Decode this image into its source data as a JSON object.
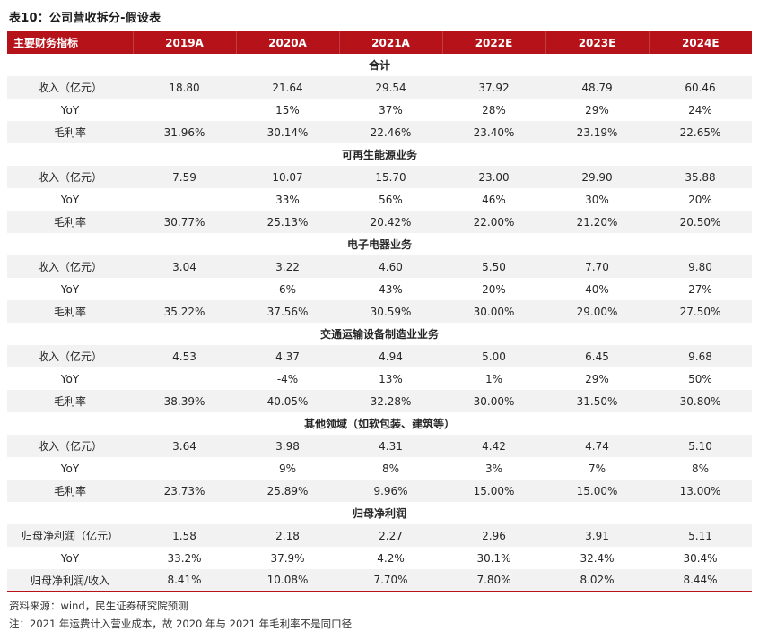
{
  "title": "表10：公司营收拆分-假设表",
  "colors": {
    "header_bg": "#b5121a",
    "accent_red": "#b5121a",
    "row_alt_bg": "#f2f2f2"
  },
  "table": {
    "header": [
      "主要财务指标",
      "2019A",
      "2020A",
      "2021A",
      "2022E",
      "2023E",
      "2024E"
    ],
    "sections": [
      {
        "name": "合计",
        "rows": [
          {
            "label": "收入（亿元）",
            "values": [
              "18.80",
              "21.64",
              "29.54",
              "37.92",
              "48.79",
              "60.46"
            ]
          },
          {
            "label": "YoY",
            "values": [
              "",
              "15%",
              "37%",
              "28%",
              "29%",
              "24%"
            ]
          },
          {
            "label": "毛利率",
            "values": [
              "31.96%",
              "30.14%",
              "22.46%",
              "23.40%",
              "23.19%",
              "22.65%"
            ]
          }
        ]
      },
      {
        "name": "可再生能源业务",
        "rows": [
          {
            "label": "收入（亿元）",
            "values": [
              "7.59",
              "10.07",
              "15.70",
              "23.00",
              "29.90",
              "35.88"
            ]
          },
          {
            "label": "YoY",
            "values": [
              "",
              "33%",
              "56%",
              "46%",
              "30%",
              "20%"
            ]
          },
          {
            "label": "毛利率",
            "values": [
              "30.77%",
              "25.13%",
              "20.42%",
              "22.00%",
              "21.20%",
              "20.50%"
            ]
          }
        ]
      },
      {
        "name": "电子电器业务",
        "rows": [
          {
            "label": "收入（亿元）",
            "values": [
              "3.04",
              "3.22",
              "4.60",
              "5.50",
              "7.70",
              "9.80"
            ]
          },
          {
            "label": "YoY",
            "values": [
              "",
              "6%",
              "43%",
              "20%",
              "40%",
              "27%"
            ]
          },
          {
            "label": "毛利率",
            "values": [
              "35.22%",
              "37.56%",
              "30.59%",
              "30.00%",
              "29.00%",
              "27.50%"
            ]
          }
        ]
      },
      {
        "name": "交通运输设备制造业业务",
        "rows": [
          {
            "label": "收入（亿元）",
            "values": [
              "4.53",
              "4.37",
              "4.94",
              "5.00",
              "6.45",
              "9.68"
            ]
          },
          {
            "label": "YoY",
            "values": [
              "",
              "-4%",
              "13%",
              "1%",
              "29%",
              "50%"
            ]
          },
          {
            "label": "毛利率",
            "values": [
              "38.39%",
              "40.05%",
              "32.28%",
              "30.00%",
              "31.50%",
              "30.80%"
            ]
          }
        ]
      },
      {
        "name": "其他领域（如软包装、建筑等）",
        "rows": [
          {
            "label": "收入（亿元）",
            "values": [
              "3.64",
              "3.98",
              "4.31",
              "4.42",
              "4.74",
              "5.10"
            ]
          },
          {
            "label": "YoY",
            "values": [
              "",
              "9%",
              "8%",
              "3%",
              "7%",
              "8%"
            ]
          },
          {
            "label": "毛利率",
            "values": [
              "23.73%",
              "25.89%",
              "9.96%",
              "15.00%",
              "15.00%",
              "13.00%"
            ]
          }
        ]
      },
      {
        "name": "归母净利润",
        "rows": [
          {
            "label": "归母净利润（亿元）",
            "values": [
              "1.58",
              "2.18",
              "2.27",
              "2.96",
              "3.91",
              "5.11"
            ]
          },
          {
            "label": "YoY",
            "values": [
              "33.2%",
              "37.9%",
              "4.2%",
              "30.1%",
              "32.4%",
              "30.4%"
            ]
          },
          {
            "label": "归母净利润/收入",
            "values": [
              "8.41%",
              "10.08%",
              "7.70%",
              "7.80%",
              "8.02%",
              "8.44%"
            ]
          }
        ]
      }
    ]
  },
  "footer": {
    "source": "资料来源：wind，民生证券研究院预测",
    "note": "注：2021 年运费计入营业成本，故 2020 年与 2021 年毛利率不是同口径"
  }
}
